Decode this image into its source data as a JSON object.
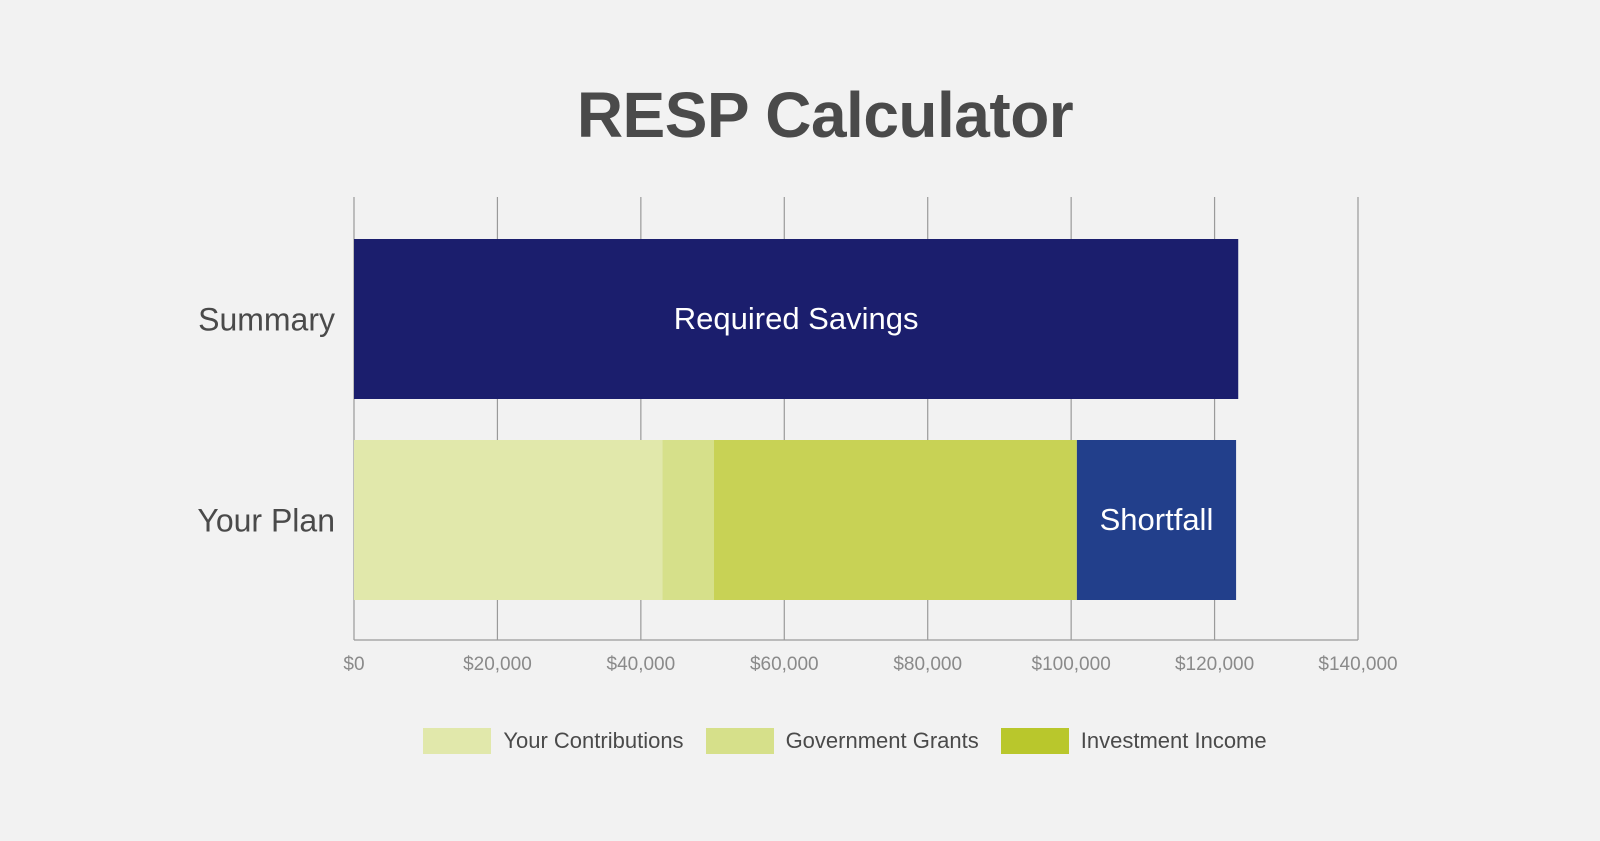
{
  "chart_data": {
    "type": "bar",
    "orientation": "horizontal",
    "stacked": true,
    "title": "RESP Calculator",
    "xlabel": "",
    "ylabel": "",
    "xlim": [
      0,
      140000
    ],
    "x_ticks": [
      "$0",
      "$20,000",
      "$40,000",
      "$60,000",
      "$80,000",
      "$100,000",
      "$120,000",
      "$140,000"
    ],
    "x_tick_values": [
      0,
      20000,
      40000,
      60000,
      80000,
      100000,
      120000,
      140000
    ],
    "grid": true,
    "legend_position": "bottom",
    "categories": [
      "Summary",
      "Your Plan"
    ],
    "series": [
      {
        "name": "Your Contributions",
        "values": [
          0,
          43000
        ],
        "color": "#e1e8ab"
      },
      {
        "name": "Government Grants",
        "values": [
          0,
          7200
        ],
        "color": "#d6e08a"
      },
      {
        "name": "Investment Income",
        "values": [
          0,
          50600
        ],
        "color": "#c8d255"
      },
      {
        "name": "",
        "values": [
          0,
          22200
        ],
        "color": "#223f8b"
      },
      {
        "name": "",
        "values": [
          123300,
          0
        ],
        "color": "#1b1e6d"
      }
    ],
    "bar_labels": [
      {
        "text": "Required Savings",
        "category": "Summary",
        "series_index": 4
      },
      {
        "text": "Shortfall",
        "category": "Your Plan",
        "series_index": 3
      }
    ],
    "legend": [
      {
        "label": "Your Contributions",
        "color": "#e1e8ab"
      },
      {
        "label": "Government Grants",
        "color": "#d6e08a"
      },
      {
        "label": "Investment Income",
        "color": "#b9c72c"
      }
    ]
  }
}
